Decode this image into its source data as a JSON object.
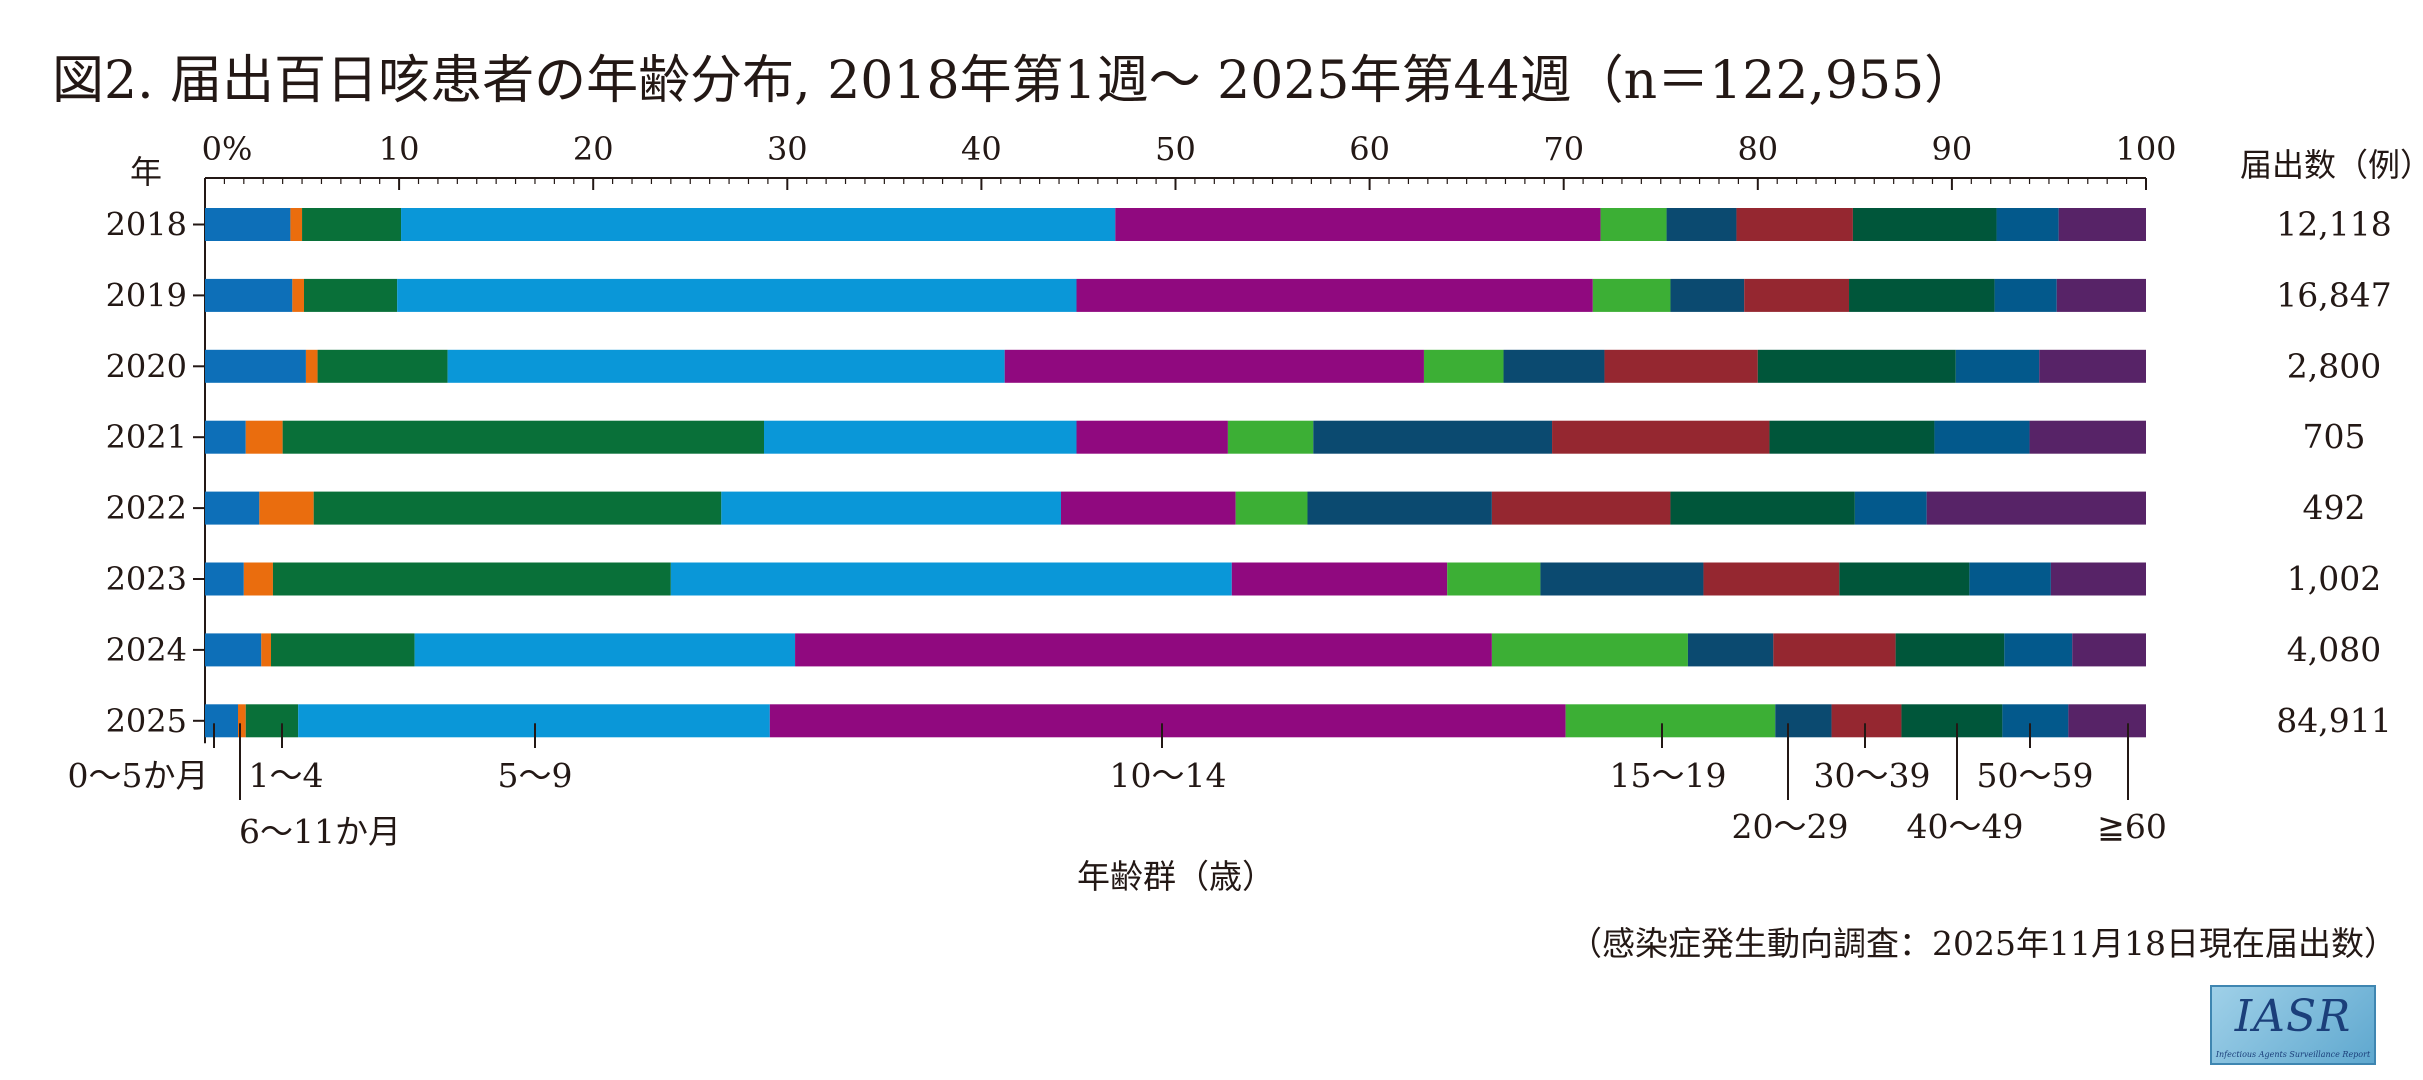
{
  "chart_data": {
    "type": "bar",
    "orientation": "horizontal",
    "stacked": "percent",
    "title": "図2. 届出百日咳患者の年齢分布, 2018年第1週～ 2025年第44週（n＝122,955）",
    "xlabel": "年齢群（歳）",
    "ylabel": "年",
    "count_header": "届出数（例）",
    "x_ticks": [
      "0%",
      "10",
      "20",
      "30",
      "40",
      "50",
      "60",
      "70",
      "80",
      "90",
      "100"
    ],
    "xlim": [
      0,
      100
    ],
    "categories": [
      "2018",
      "2019",
      "2020",
      "2021",
      "2022",
      "2023",
      "2024",
      "2025"
    ],
    "counts": [
      "12,118",
      "16,847",
      "2,800",
      "705",
      "492",
      "1,002",
      "4,080",
      "84,911"
    ],
    "series": [
      {
        "name": "0～5か月",
        "color": "#0d6fb8",
        "values": [
          4.4,
          4.5,
          5.2,
          2.1,
          2.8,
          2.0,
          2.9,
          1.7
        ]
      },
      {
        "name": "6～11か月",
        "color": "#ea6d0e",
        "values": [
          0.6,
          0.6,
          0.6,
          1.9,
          2.8,
          1.5,
          0.5,
          0.4
        ]
      },
      {
        "name": "1～4",
        "color": "#097039",
        "values": [
          5.1,
          4.8,
          6.7,
          24.8,
          21.0,
          20.5,
          7.4,
          2.7
        ]
      },
      {
        "name": "5～9",
        "color": "#0a97d8",
        "values": [
          36.8,
          35.0,
          28.7,
          16.1,
          17.5,
          28.9,
          19.6,
          24.3
        ]
      },
      {
        "name": "10～14",
        "color": "#90097f",
        "values": [
          25.0,
          26.6,
          21.6,
          7.8,
          9.0,
          11.1,
          35.9,
          41.0
        ]
      },
      {
        "name": "15～19",
        "color": "#3caf35",
        "values": [
          3.4,
          4.0,
          4.1,
          4.4,
          3.7,
          4.8,
          10.1,
          10.8
        ]
      },
      {
        "name": "20～29",
        "color": "#0b4a70",
        "values": [
          3.6,
          3.8,
          5.2,
          12.3,
          9.5,
          8.4,
          4.4,
          2.9
        ]
      },
      {
        "name": "30～39",
        "color": "#952730",
        "values": [
          6.0,
          5.4,
          7.9,
          11.2,
          9.2,
          7.0,
          6.3,
          3.6
        ]
      },
      {
        "name": "40～49",
        "color": "#00563a",
        "values": [
          7.4,
          7.5,
          10.2,
          8.5,
          9.5,
          6.7,
          5.6,
          5.2
        ]
      },
      {
        "name": "50～59",
        "color": "#03598c",
        "values": [
          3.2,
          3.2,
          4.3,
          4.9,
          3.7,
          4.2,
          3.5,
          3.4
        ]
      },
      {
        "name": "≧60",
        "color": "#572367",
        "values": [
          4.5,
          4.6,
          5.5,
          6.0,
          11.3,
          4.9,
          3.8,
          4.0
        ]
      }
    ]
  },
  "source_note": "（感染症発生動向調査：2025年11月18日現在届出数）",
  "logo": {
    "text": "IASR",
    "subtext": "Infectious Agents Surveillance Report"
  }
}
